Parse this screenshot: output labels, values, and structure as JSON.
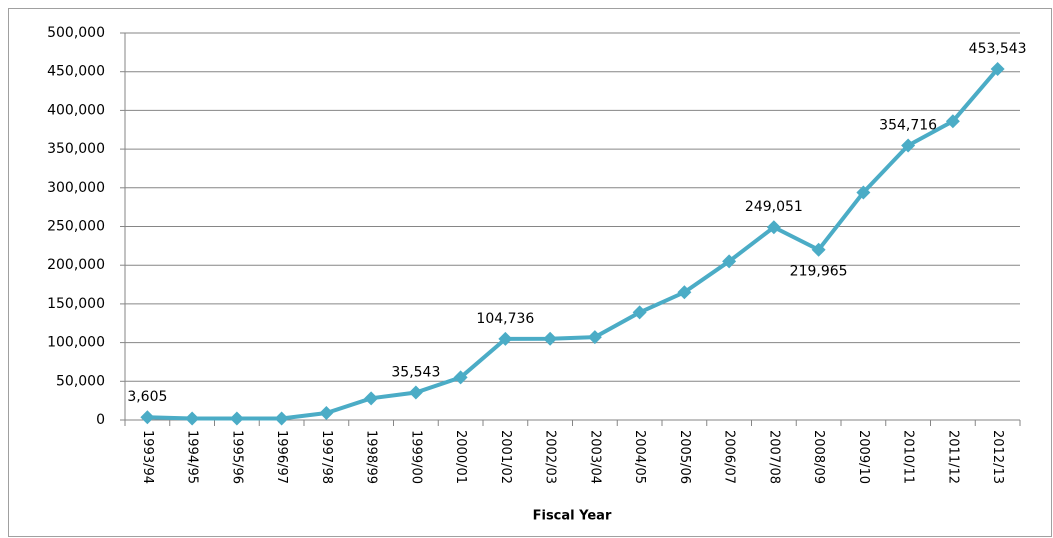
{
  "chart_data": {
    "type": "line",
    "x_label": "Fiscal Year",
    "categories": [
      "1993/94",
      "1994/95",
      "1995/96",
      "1996/97",
      "1997/98",
      "1998/99",
      "1999/00",
      "2000/01",
      "2001/02",
      "2002/03",
      "2003/04",
      "2004/05",
      "2005/06",
      "2006/07",
      "2007/08",
      "2008/09",
      "2009/10",
      "2010/11",
      "2011/12",
      "2012/13"
    ],
    "series": [
      {
        "color": "#4bacc6",
        "values": [
          3605,
          2000,
          2000,
          2000,
          9000,
          28000,
          35543,
          55000,
          104736,
          105000,
          107000,
          139000,
          165000,
          205000,
          249051,
          219965,
          294000,
          354716,
          386000,
          453543
        ],
        "value_labels": [
          "3,605",
          null,
          null,
          null,
          null,
          null,
          "35,543",
          null,
          "104,736",
          null,
          null,
          null,
          null,
          null,
          "249,051",
          "219,965",
          null,
          "354,716",
          null,
          "453,543"
        ]
      }
    ],
    "ylim": [
      0,
      500000
    ],
    "yticks": [
      0,
      {
        "value": 50000,
        "label": "50,000"
      },
      {
        "value": 100000,
        "label": "100,000"
      },
      {
        "value": 150000,
        "label": "150,000"
      },
      {
        "value": 200000,
        "label": "200,000"
      },
      {
        "value": 250000,
        "label": "250,000"
      },
      {
        "value": 300000,
        "label": "300,000"
      },
      {
        "value": 350000,
        "label": "350,000"
      },
      {
        "value": 400000,
        "label": "400,000"
      },
      {
        "value": 450000,
        "label": "450,000"
      },
      {
        "value": 500000,
        "label": "500,000"
      }
    ],
    "grid": true
  }
}
